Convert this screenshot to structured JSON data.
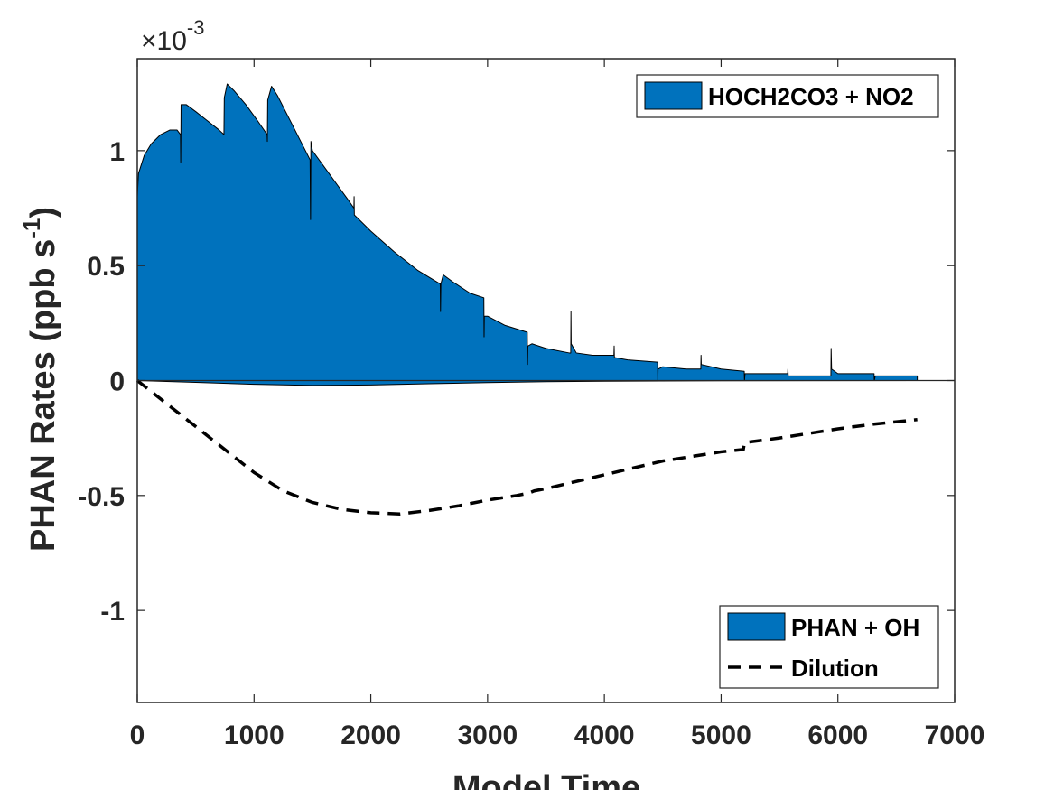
{
  "chart_data": {
    "type": "area",
    "xlabel": "Model Time",
    "ylabel_main": "PHAN Rates (ppb s",
    "ylabel_sup": "-1",
    "ylabel_close": ")",
    "y_exponent_prefix": "×10",
    "y_exponent": "-3",
    "y_scale": 0.001,
    "xlim": [
      0,
      7000
    ],
    "ylim": [
      -1.4,
      1.4
    ],
    "x_ticks": [
      0,
      1000,
      2000,
      3000,
      4000,
      5000,
      6000,
      7000
    ],
    "x_tick_labels": [
      "0",
      "1000",
      "2000",
      "3000",
      "4000",
      "5000",
      "6000",
      "7000"
    ],
    "y_ticks": [
      1,
      0.5,
      0,
      -0.5,
      -1
    ],
    "y_tick_labels": [
      "1",
      "0.5",
      "0",
      "-0.5",
      "-1"
    ],
    "grid": false,
    "colors": {
      "area": "#0072BD",
      "dilution": "#000000",
      "axis": "#262626"
    },
    "series": [
      {
        "name": "HOCH2CO3 + NO2",
        "style": "area",
        "legend": "top-right",
        "points": [
          [
            0,
            0
          ],
          [
            0,
            0.8
          ],
          [
            10,
            0.9
          ],
          [
            60,
            0.98
          ],
          [
            120,
            1.03
          ],
          [
            200,
            1.07
          ],
          [
            280,
            1.09
          ],
          [
            340,
            1.09
          ],
          [
            370,
            1.07
          ],
          [
            372,
            0.95
          ],
          [
            375,
            1.2
          ],
          [
            420,
            1.2
          ],
          [
            500,
            1.17
          ],
          [
            600,
            1.13
          ],
          [
            700,
            1.09
          ],
          [
            742,
            1.07
          ],
          [
            745,
            1.23
          ],
          [
            770,
            1.29
          ],
          [
            830,
            1.26
          ],
          [
            930,
            1.2
          ],
          [
            1030,
            1.13
          ],
          [
            1112,
            1.07
          ],
          [
            1114,
            1.04
          ],
          [
            1117,
            1.22
          ],
          [
            1150,
            1.28
          ],
          [
            1200,
            1.24
          ],
          [
            1300,
            1.14
          ],
          [
            1400,
            1.04
          ],
          [
            1480,
            0.96
          ],
          [
            1484,
            0.7
          ],
          [
            1487,
            1.04
          ],
          [
            1500,
            1.0
          ],
          [
            1600,
            0.93
          ],
          [
            1700,
            0.86
          ],
          [
            1800,
            0.79
          ],
          [
            1855,
            0.75
          ],
          [
            1857,
            0.8
          ],
          [
            1859,
            0.72
          ],
          [
            1900,
            0.7
          ],
          [
            2000,
            0.65
          ],
          [
            2200,
            0.56
          ],
          [
            2400,
            0.48
          ],
          [
            2595,
            0.42
          ],
          [
            2597,
            0.3
          ],
          [
            2600,
            0.42
          ],
          [
            2620,
            0.46
          ],
          [
            2700,
            0.43
          ],
          [
            2850,
            0.38
          ],
          [
            2968,
            0.36
          ],
          [
            2970,
            0.19
          ],
          [
            2972,
            0.28
          ],
          [
            3000,
            0.28
          ],
          [
            3150,
            0.24
          ],
          [
            3340,
            0.21
          ],
          [
            3342,
            0.07
          ],
          [
            3345,
            0.15
          ],
          [
            3380,
            0.16
          ],
          [
            3500,
            0.14
          ],
          [
            3700,
            0.12
          ],
          [
            3712,
            0.12
          ],
          [
            3714,
            0.3
          ],
          [
            3716,
            0.16
          ],
          [
            3760,
            0.12
          ],
          [
            3900,
            0.11
          ],
          [
            4082,
            0.11
          ],
          [
            4084,
            0.15
          ],
          [
            4086,
            0.1
          ],
          [
            4200,
            0.09
          ],
          [
            4456,
            0.08
          ],
          [
            4458,
            0.0
          ],
          [
            4460,
            0.05
          ],
          [
            4500,
            0.06
          ],
          [
            4700,
            0.05
          ],
          [
            4826,
            0.05
          ],
          [
            4828,
            0.11
          ],
          [
            4830,
            0.07
          ],
          [
            5000,
            0.05
          ],
          [
            5198,
            0.04
          ],
          [
            5200,
            0.0
          ],
          [
            5205,
            0.03
          ],
          [
            5400,
            0.03
          ],
          [
            5570,
            0.03
          ],
          [
            5572,
            0.05
          ],
          [
            5575,
            0.02
          ],
          [
            5800,
            0.02
          ],
          [
            5940,
            0.02
          ],
          [
            5942,
            0.14
          ],
          [
            5946,
            0.05
          ],
          [
            6000,
            0.03
          ],
          [
            6310,
            0.03
          ],
          [
            6312,
            0.0
          ],
          [
            6320,
            0.02
          ],
          [
            6680,
            0.02
          ],
          [
            6680,
            0
          ]
        ]
      },
      {
        "name": "PHAN + OH",
        "style": "area",
        "legend": "bottom-right",
        "points": [
          [
            0,
            0
          ],
          [
            0,
            0
          ],
          [
            500,
            -0.008
          ],
          [
            1000,
            -0.016
          ],
          [
            1500,
            -0.021
          ],
          [
            2000,
            -0.019
          ],
          [
            2500,
            -0.014
          ],
          [
            3000,
            -0.009
          ],
          [
            3500,
            -0.005
          ],
          [
            4000,
            -0.003
          ],
          [
            5000,
            -0.001
          ],
          [
            6680,
            0
          ],
          [
            6680,
            0
          ]
        ]
      },
      {
        "name": "Dilution",
        "style": "dashed-line",
        "legend": "bottom-right",
        "points": [
          [
            0,
            0
          ],
          [
            250,
            -0.1
          ],
          [
            500,
            -0.2
          ],
          [
            750,
            -0.3
          ],
          [
            1000,
            -0.4
          ],
          [
            1250,
            -0.48
          ],
          [
            1500,
            -0.53
          ],
          [
            1750,
            -0.56
          ],
          [
            2000,
            -0.575
          ],
          [
            2250,
            -0.58
          ],
          [
            2500,
            -0.565
          ],
          [
            2750,
            -0.545
          ],
          [
            3000,
            -0.52
          ],
          [
            3250,
            -0.5
          ],
          [
            3350,
            -0.49
          ],
          [
            3400,
            -0.48
          ],
          [
            3500,
            -0.47
          ],
          [
            3750,
            -0.44
          ],
          [
            4000,
            -0.41
          ],
          [
            4250,
            -0.38
          ],
          [
            4500,
            -0.35
          ],
          [
            4750,
            -0.33
          ],
          [
            5000,
            -0.31
          ],
          [
            5190,
            -0.3
          ],
          [
            5200,
            -0.27
          ],
          [
            5500,
            -0.25
          ],
          [
            6000,
            -0.21
          ],
          [
            6300,
            -0.19
          ],
          [
            6680,
            -0.17
          ]
        ]
      }
    ]
  }
}
